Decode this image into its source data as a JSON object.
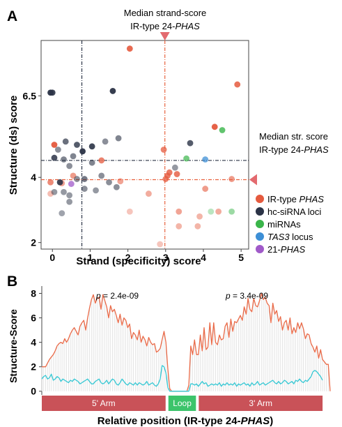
{
  "chart_data": [
    {
      "panel": "A",
      "type": "scatter",
      "xlabel": "Strand (specificity) score",
      "ylabel": "Structure (ds) score",
      "xlim": [
        -0.3,
        5.2
      ],
      "ylim": [
        1.8,
        8.2
      ],
      "xticks": [
        "0",
        "1",
        "2",
        "3",
        "4",
        "5"
      ],
      "yticks": [
        "2",
        "4",
        "6.5"
      ],
      "ytick_values": [
        2,
        4,
        6.5
      ],
      "grid": false,
      "legend_position": "right",
      "annotations": {
        "top_line1": "Median strand-score",
        "top_line2_prefix": "IR-type 24-",
        "top_line2_italic": "PHAS",
        "right_line1": "Median str. score",
        "right_line2_prefix": "IR-type 24-",
        "right_line2_italic": "PHAS"
      },
      "ref_lines": [
        {
          "axis": "x",
          "value": 2.98,
          "color": "#e8623e"
        },
        {
          "axis": "x",
          "value": 0.78,
          "color": "#2a3345"
        },
        {
          "axis": "y",
          "value": 4.52,
          "color": "#2a3345"
        },
        {
          "axis": "y",
          "value": 3.93,
          "color": "#e8623e"
        }
      ],
      "series": [
        {
          "name_prefix": "IR-type ",
          "name_italic": "PHAS",
          "name_suffix": "",
          "color": "#e55a3e",
          "points": [
            {
              "x": 2.05,
              "y": 7.95,
              "a": 0.9
            },
            {
              "x": 4.9,
              "y": 6.85,
              "a": 0.85
            },
            {
              "x": 4.3,
              "y": 5.55,
              "a": 0.95
            },
            {
              "x": 0.05,
              "y": 5.0,
              "a": 0.95
            },
            {
              "x": 2.95,
              "y": 4.85,
              "a": 0.75
            },
            {
              "x": 1.3,
              "y": 4.52,
              "a": 0.75
            },
            {
              "x": 3.05,
              "y": 4.05,
              "a": 0.8
            },
            {
              "x": 3.1,
              "y": 4.15,
              "a": 0.8
            },
            {
              "x": 3.0,
              "y": 3.95,
              "a": 0.75
            },
            {
              "x": 3.3,
              "y": 4.1,
              "a": 0.8
            },
            {
              "x": 0.55,
              "y": 4.05,
              "a": 0.6
            },
            {
              "x": -0.05,
              "y": 3.85,
              "a": 0.7
            },
            {
              "x": 1.8,
              "y": 3.88,
              "a": 0.55
            },
            {
              "x": 2.55,
              "y": 3.5,
              "a": 0.5
            },
            {
              "x": 4.05,
              "y": 3.65,
              "a": 0.6
            },
            {
              "x": 4.75,
              "y": 3.95,
              "a": 0.6
            },
            {
              "x": -0.05,
              "y": 3.5,
              "a": 0.4
            },
            {
              "x": 2.05,
              "y": 2.95,
              "a": 0.35
            },
            {
              "x": 3.35,
              "y": 2.95,
              "a": 0.55
            },
            {
              "x": 4.4,
              "y": 2.95,
              "a": 0.5
            },
            {
              "x": 3.9,
              "y": 2.8,
              "a": 0.45
            },
            {
              "x": 3.35,
              "y": 2.5,
              "a": 0.45
            },
            {
              "x": 3.85,
              "y": 2.5,
              "a": 0.45
            },
            {
              "x": 2.85,
              "y": 1.95,
              "a": 0.35
            },
            {
              "x": 0.25,
              "y": 3.82,
              "a": 0.55
            }
          ]
        },
        {
          "name_prefix": "hc-siRNA loci",
          "name_italic": "",
          "name_suffix": "",
          "color": "#2b3346",
          "points": [
            {
              "x": -0.05,
              "y": 6.6,
              "a": 0.95
            },
            {
              "x": 0.0,
              "y": 6.6,
              "a": 0.9
            },
            {
              "x": 1.6,
              "y": 6.65,
              "a": 0.95
            },
            {
              "x": 0.8,
              "y": 4.8,
              "a": 0.95
            },
            {
              "x": 1.05,
              "y": 4.95,
              "a": 0.9
            },
            {
              "x": 0.65,
              "y": 5.0,
              "a": 0.8
            },
            {
              "x": 0.35,
              "y": 5.1,
              "a": 0.7
            },
            {
              "x": 0.05,
              "y": 4.6,
              "a": 0.85
            },
            {
              "x": 1.4,
              "y": 5.1,
              "a": 0.55
            },
            {
              "x": 1.75,
              "y": 5.2,
              "a": 0.6
            },
            {
              "x": 0.15,
              "y": 4.85,
              "a": 0.55
            },
            {
              "x": 0.55,
              "y": 4.65,
              "a": 0.6
            },
            {
              "x": 0.3,
              "y": 4.55,
              "a": 0.6
            },
            {
              "x": 1.05,
              "y": 4.45,
              "a": 0.6
            },
            {
              "x": 0.85,
              "y": 3.95,
              "a": 0.65
            },
            {
              "x": 0.2,
              "y": 3.85,
              "a": 0.9
            },
            {
              "x": 0.45,
              "y": 4.35,
              "a": 0.55
            },
            {
              "x": 1.3,
              "y": 4.05,
              "a": 0.55
            },
            {
              "x": 1.7,
              "y": 3.7,
              "a": 0.55
            },
            {
              "x": 1.5,
              "y": 3.85,
              "a": 0.55
            },
            {
              "x": 0.85,
              "y": 3.65,
              "a": 0.55
            },
            {
              "x": 0.65,
              "y": 3.95,
              "a": 0.55
            },
            {
              "x": 0.3,
              "y": 3.55,
              "a": 0.5
            },
            {
              "x": 0.45,
              "y": 3.25,
              "a": 0.5
            },
            {
              "x": 0.45,
              "y": 3.45,
              "a": 0.5
            },
            {
              "x": 0.05,
              "y": 3.55,
              "a": 0.5
            },
            {
              "x": 1.15,
              "y": 3.6,
              "a": 0.5
            },
            {
              "x": 0.25,
              "y": 2.9,
              "a": 0.45
            },
            {
              "x": 3.65,
              "y": 5.05,
              "a": 0.8
            },
            {
              "x": 3.25,
              "y": 4.3,
              "a": 0.5
            }
          ]
        },
        {
          "name_prefix": "miRNAs",
          "name_italic": "",
          "name_suffix": "",
          "color": "#3ab54a",
          "points": [
            {
              "x": 4.5,
              "y": 5.45,
              "a": 0.8
            },
            {
              "x": 3.55,
              "y": 4.58,
              "a": 0.7
            },
            {
              "x": 4.2,
              "y": 2.95,
              "a": 0.35
            },
            {
              "x": 4.75,
              "y": 2.95,
              "a": 0.5
            }
          ]
        },
        {
          "name_prefix": "",
          "name_italic": "TAS3",
          "name_suffix": " locus",
          "color": "#3d8fd6",
          "points": [
            {
              "x": 4.05,
              "y": 4.55,
              "a": 0.75
            }
          ]
        },
        {
          "name_prefix": "21-",
          "name_italic": "PHAS",
          "name_suffix": "",
          "color": "#a05ac9",
          "points": [
            {
              "x": 0.5,
              "y": 3.8,
              "a": 0.75
            }
          ]
        }
      ]
    },
    {
      "panel": "B",
      "type": "line",
      "xlabel_prefix": "Relative position (IR-type 24-",
      "xlabel_italic": "PHAS",
      "xlabel_suffix": ")",
      "ylabel": "Structure-Score",
      "ylim": [
        -0.3,
        8.6
      ],
      "yticks": [
        0,
        2,
        4,
        6,
        8
      ],
      "grid": false,
      "pvalue_left_prefix": "p",
      "pvalue_left_value": " = 2.4e-09",
      "pvalue_right_prefix": "p",
      "pvalue_right_value": " = 3.4e-09",
      "segments": [
        {
          "label": "5' Arm",
          "start": 0,
          "end": 66,
          "color": "#c95258"
        },
        {
          "label": "Loop",
          "start": 66,
          "end": 82,
          "color": "#3cc46b"
        },
        {
          "label": "3' Arm",
          "start": 82,
          "end": 148,
          "color": "#c95258"
        }
      ],
      "series": [
        {
          "role": "IR-type 24-PHAS",
          "color": "#ea6a48",
          "values": [
            2.0,
            2.0,
            2.0,
            2.3,
            2.6,
            2.8,
            3.0,
            3.3,
            3.7,
            3.9,
            4.0,
            3.9,
            4.3,
            4.0,
            4.3,
            4.7,
            5.0,
            5.2,
            4.9,
            4.6,
            5.3,
            5.6,
            5.8,
            5.0,
            6.0,
            6.8,
            7.5,
            7.9,
            7.2,
            7.6,
            7.7,
            6.7,
            7.9,
            7.4,
            6.9,
            6.0,
            7.0,
            6.5,
            6.7,
            6.2,
            5.6,
            6.3,
            5.4,
            6.0,
            5.8,
            5.2,
            5.5,
            4.3,
            4.8,
            4.6,
            4.2,
            5.0,
            4.0,
            4.5,
            4.2,
            3.7,
            4.4,
            4.0,
            3.8,
            3.9,
            3.2,
            3.3,
            3.5,
            4.2,
            4.9,
            4.0,
            1.8,
            0.2,
            0.0,
            0.0,
            0.0,
            0.0,
            0.0,
            0.0,
            0.0,
            0.0,
            0.0,
            0.5,
            3.7,
            3.0,
            4.2,
            3.0,
            3.0,
            4.6,
            3.3,
            5.2,
            3.4,
            3.6,
            5.6,
            3.8,
            5.6,
            4.0,
            3.8,
            4.6,
            4.2,
            4.3,
            5.3,
            5.6,
            4.4,
            5.9,
            4.9,
            5.7,
            5.6,
            5.9,
            6.2,
            5.8,
            6.9,
            6.3,
            7.6,
            6.7,
            6.5,
            7.6,
            7.0,
            6.9,
            7.4,
            8.0,
            7.5,
            7.7,
            7.2,
            7.0,
            5.6,
            7.2,
            6.3,
            6.6,
            5.7,
            6.1,
            5.0,
            5.6,
            5.8,
            5.0,
            6.0,
            4.7,
            5.2,
            4.8,
            5.6,
            5.1,
            5.6,
            5.1,
            4.3,
            4.7,
            4.6,
            3.9,
            3.6,
            3.2,
            3.7,
            2.7,
            3.4,
            2.6,
            2.4,
            2.2,
            2.2,
            0.0
          ]
        },
        {
          "role": "control",
          "color": "#34c8d4",
          "values": [
            1.0,
            1.2,
            1.3,
            1.0,
            1.1,
            1.4,
            0.9,
            1.0,
            1.2,
            1.1,
            0.8,
            1.0,
            0.9,
            0.8,
            0.7,
            0.9,
            0.8,
            1.0,
            0.9,
            0.8,
            0.6,
            0.7,
            0.8,
            0.9,
            1.0,
            0.8,
            0.6,
            0.6,
            0.8,
            0.9,
            1.0,
            0.7,
            0.6,
            0.7,
            0.9,
            0.6,
            0.8,
            1.0,
            0.9,
            0.6,
            0.5,
            0.7,
            1.0,
            0.8,
            0.6,
            0.5,
            0.7,
            0.6,
            0.5,
            0.7,
            0.5,
            0.7,
            0.6,
            0.5,
            0.6,
            0.8,
            0.5,
            0.6,
            0.7,
            0.5,
            0.4,
            0.6,
            1.0,
            2.1,
            2.0,
            1.5,
            0.3,
            0.0,
            0.0,
            0.0,
            0.0,
            0.0,
            0.0,
            0.0,
            0.0,
            0.0,
            0.0,
            0.0,
            0.6,
            0.6,
            0.5,
            0.6,
            0.4,
            0.6,
            0.8,
            0.6,
            0.7,
            0.4,
            0.5,
            0.6,
            0.5,
            0.6,
            0.5,
            0.7,
            0.4,
            0.6,
            0.5,
            0.7,
            0.5,
            0.6,
            0.5,
            0.7,
            0.4,
            0.6,
            0.5,
            0.6,
            0.7,
            0.5,
            0.6,
            0.4,
            0.7,
            0.5,
            0.6,
            0.8,
            0.5,
            0.6,
            0.7,
            0.5,
            0.6,
            0.7,
            0.8,
            0.9,
            0.7,
            0.6,
            0.8,
            0.6,
            0.7,
            0.9,
            0.8,
            0.6,
            0.7,
            0.8,
            0.6,
            0.9,
            0.8,
            1.0,
            0.8,
            0.7,
            0.9,
            0.8,
            1.0,
            1.2,
            1.6,
            1.7,
            1.6,
            1.4,
            1.2,
            0.9
          ]
        }
      ]
    }
  ],
  "panel_labels": {
    "a": "A",
    "b": "B"
  }
}
